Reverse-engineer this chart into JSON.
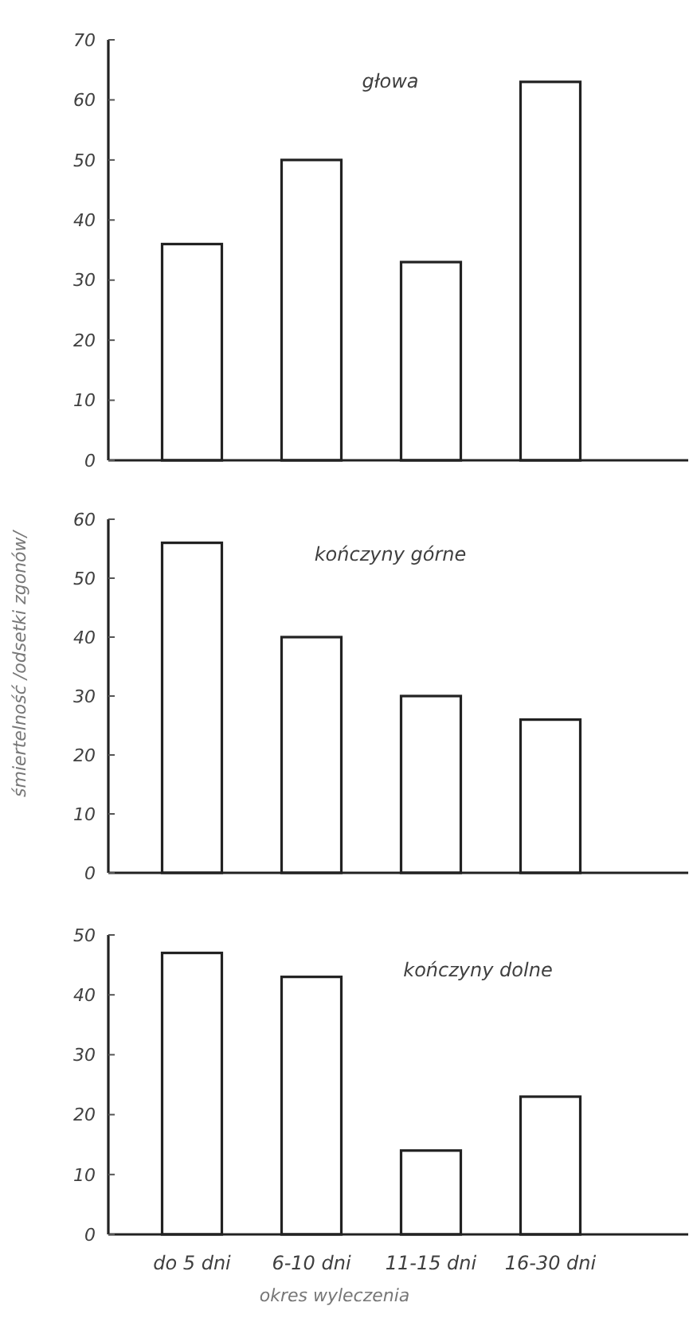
{
  "chart_data": [
    {
      "type": "bar",
      "title": "głowa",
      "categories": [
        null,
        null,
        null,
        null
      ],
      "values": [
        36,
        50,
        33,
        63
      ],
      "color": "#ffffff",
      "ylim": [
        0,
        70
      ],
      "yticks": [
        0,
        10,
        20,
        30,
        40,
        50,
        60,
        70
      ],
      "tick_labels": "y",
      "grid": false
    },
    {
      "type": "bar",
      "title": "kończyny górne",
      "ylabel": "śmiertelność /odsetki zgonów/",
      "categories": [
        null,
        null,
        null,
        null
      ],
      "values": [
        56,
        40,
        30,
        26
      ],
      "color": "#ffffff",
      "ylim": [
        0,
        60
      ],
      "yticks": [
        0,
        10,
        20,
        30,
        40,
        50,
        60
      ],
      "tick_labels": "y",
      "grid": false
    },
    {
      "type": "bar",
      "title": "kończyny dolne",
      "xlabel": "okres wyleczenia",
      "categories": [
        "do 5 dni",
        "6-10 dni",
        "11-15 dni",
        "16-30 dni"
      ],
      "values": [
        47,
        43,
        14,
        23
      ],
      "color": "#ffffff",
      "ylim": [
        0,
        50
      ],
      "yticks": [
        0,
        10,
        20,
        30,
        40,
        50
      ],
      "grid": false
    }
  ]
}
